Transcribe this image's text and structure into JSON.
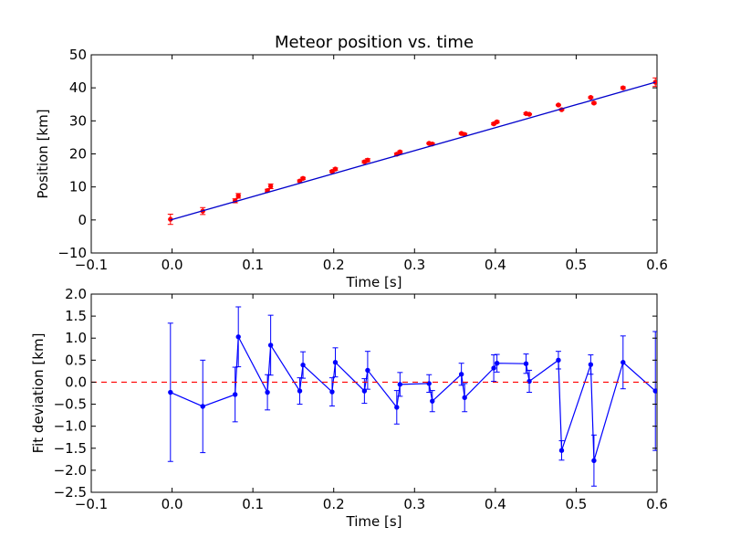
{
  "figure": {
    "background": "#ffffff"
  },
  "chart_data": [
    {
      "type": "scatter",
      "title": "Meteor position vs. time",
      "xlabel": "Time [s]",
      "ylabel": "Position [km]",
      "xlim": [
        -0.1,
        0.6
      ],
      "ylim": [
        -10,
        50
      ],
      "xticks": [
        -0.1,
        0.0,
        0.1,
        0.2,
        0.3,
        0.4,
        0.5,
        0.6
      ],
      "xtick_labels": [
        "−0.1",
        "0.0",
        "0.1",
        "0.2",
        "0.3",
        "0.4",
        "0.5",
        "0.6"
      ],
      "yticks": [
        -10,
        0,
        10,
        20,
        30,
        40,
        50
      ],
      "ytick_labels": [
        "−10",
        "0",
        "10",
        "20",
        "30",
        "40",
        "50"
      ],
      "grid": false,
      "series": [
        {
          "kind": "errorbar-points",
          "color": "#ff0000",
          "x": [
            -0.002,
            0.038,
            0.078,
            0.082,
            0.118,
            0.122,
            0.158,
            0.162,
            0.198,
            0.202,
            0.238,
            0.242,
            0.278,
            0.282,
            0.318,
            0.322,
            0.358,
            0.362,
            0.398,
            0.402,
            0.438,
            0.442,
            0.478,
            0.482,
            0.518,
            0.522,
            0.558,
            0.598
          ],
          "y": [
            0.2,
            2.7,
            5.8,
            7.3,
            8.9,
            10.2,
            11.8,
            12.6,
            14.7,
            15.4,
            17.6,
            18.1,
            19.9,
            20.6,
            23.2,
            23.0,
            26.2,
            25.9,
            29.1,
            29.7,
            32.2,
            32.0,
            34.8,
            33.4,
            37.1,
            35.4,
            40.0,
            41.7
          ],
          "yerr": [
            1.55,
            1.05,
            0.6,
            0.7,
            0.4,
            0.7,
            0.3,
            0.3,
            0.3,
            0.35,
            0.3,
            0.45,
            0.35,
            0.3,
            0.2,
            0.25,
            0.25,
            0.3,
            0.3,
            0.3,
            0.25,
            0.2,
            0.2,
            0.2,
            0.2,
            0.25,
            0.3,
            1.3
          ]
        },
        {
          "kind": "fit-line",
          "color": "#0000cc",
          "x": [
            -0.002,
            0.598
          ],
          "y": [
            0.0,
            41.7
          ]
        }
      ]
    },
    {
      "type": "line",
      "xlabel": "Time [s]",
      "ylabel": "Fit deviation [km]",
      "xlim": [
        -0.1,
        0.6
      ],
      "ylim": [
        -2.5,
        2.0
      ],
      "xticks": [
        -0.1,
        0.0,
        0.1,
        0.2,
        0.3,
        0.4,
        0.5,
        0.6
      ],
      "xtick_labels": [
        "−0.1",
        "0.0",
        "0.1",
        "0.2",
        "0.3",
        "0.4",
        "0.5",
        "0.6"
      ],
      "yticks": [
        -2.5,
        -2.0,
        -1.5,
        -1.0,
        -0.5,
        0.0,
        0.5,
        1.0,
        1.5,
        2.0
      ],
      "ytick_labels": [
        "−2.5",
        "−2.0",
        "−1.5",
        "−1.0",
        "−0.5",
        "0.0",
        "0.5",
        "1.0",
        "1.5",
        "2.0"
      ],
      "grid": false,
      "series": [
        {
          "kind": "errorbar-line",
          "color": "#0000ff",
          "x": [
            -0.002,
            0.038,
            0.078,
            0.082,
            0.118,
            0.122,
            0.158,
            0.162,
            0.198,
            0.202,
            0.238,
            0.242,
            0.278,
            0.282,
            0.318,
            0.322,
            0.358,
            0.362,
            0.398,
            0.402,
            0.438,
            0.442,
            0.478,
            0.482,
            0.518,
            0.522,
            0.558,
            0.598
          ],
          "y": [
            -0.23,
            -0.55,
            -0.28,
            1.03,
            -0.23,
            0.84,
            -0.2,
            0.39,
            -0.22,
            0.45,
            -0.2,
            0.27,
            -0.57,
            -0.05,
            -0.03,
            -0.43,
            0.18,
            -0.35,
            0.32,
            0.43,
            0.42,
            0.02,
            0.5,
            -1.55,
            0.4,
            -1.78,
            0.45,
            -0.2
          ],
          "yerr": [
            1.57,
            1.05,
            0.62,
            0.68,
            0.4,
            0.68,
            0.3,
            0.3,
            0.32,
            0.33,
            0.28,
            0.43,
            0.38,
            0.27,
            0.2,
            0.24,
            0.25,
            0.32,
            0.3,
            0.2,
            0.22,
            0.25,
            0.2,
            0.22,
            0.22,
            0.58,
            0.6,
            1.35
          ]
        },
        {
          "kind": "reference-line",
          "color": "#ff0000",
          "style": "dashed",
          "y": 0.0
        }
      ]
    }
  ]
}
